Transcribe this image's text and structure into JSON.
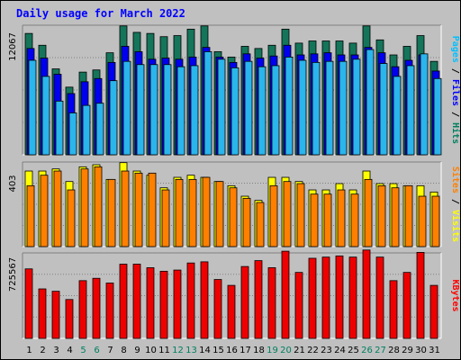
{
  "chart_data": {
    "type": "bar",
    "title": "Daily usage for March 2022",
    "x": [
      "1",
      "2",
      "3",
      "4",
      "5",
      "6",
      "7",
      "8",
      "9",
      "10",
      "11",
      "12",
      "13",
      "14",
      "15",
      "16",
      "17",
      "18",
      "19",
      "20",
      "21",
      "22",
      "23",
      "24",
      "25",
      "26",
      "27",
      "28",
      "29",
      "30",
      "31"
    ],
    "weekend_days": [
      "5",
      "6",
      "12",
      "13",
      "19",
      "20",
      "26",
      "27"
    ],
    "panels": [
      {
        "name": "requests",
        "ymax": 12067,
        "ymax_label": "12067",
        "legend": [
          {
            "text": "Pages",
            "color": "#00c0ff"
          },
          {
            "text": " / ",
            "color": "#000000"
          },
          {
            "text": "Files",
            "color": "#0000ff"
          },
          {
            "text": " / ",
            "color": "#000000"
          },
          {
            "text": "Hits",
            "color": "#008060"
          }
        ],
        "series": [
          {
            "name": "Hits",
            "color": "#14755a",
            "values": [
              11300,
              10200,
              8000,
              6300,
              7700,
              7900,
              9500,
              12000,
              11400,
              11300,
              11000,
              11100,
              11700,
              12000,
              9600,
              9100,
              10100,
              9900,
              10200,
              11700,
              10400,
              10600,
              10600,
              10600,
              10400,
              12000,
              10700,
              9300,
              10100,
              11100,
              8700
            ]
          },
          {
            "name": "Files",
            "color": "#0000ee",
            "values": [
              9900,
              9000,
              7500,
              5700,
              6800,
              7100,
              8600,
              10100,
              9600,
              8900,
              9000,
              8900,
              9100,
              10000,
              9100,
              8600,
              9400,
              9000,
              9200,
              10200,
              9300,
              9400,
              9500,
              9300,
              9300,
              10000,
              9500,
              8200,
              8800,
              9300,
              7800
            ]
          },
          {
            "name": "Pages",
            "color": "#2ab5ec",
            "values": [
              8800,
              7300,
              5000,
              3900,
              4600,
              4800,
              6900,
              8700,
              8400,
              8400,
              8400,
              8200,
              8300,
              9600,
              8900,
              8100,
              8700,
              8200,
              8300,
              9100,
              8800,
              8600,
              8700,
              8700,
              8900,
              9800,
              8500,
              7300,
              8300,
              9400,
              7100
            ]
          }
        ]
      },
      {
        "name": "visits",
        "ymax": 403,
        "ymax_label": "403",
        "legend": [
          {
            "text": "Sites",
            "color": "#ff8000"
          },
          {
            "text": " / ",
            "color": "#000000"
          },
          {
            "text": "Visits",
            "color": "#ffff00"
          }
        ],
        "series": [
          {
            "name": "Visits",
            "color": "#ffff00",
            "values": [
              360,
              360,
              370,
              310,
              380,
              390,
              320,
              400,
              360,
              340,
              280,
              330,
              340,
              330,
              310,
              290,
              240,
              220,
              330,
              330,
              310,
              270,
              270,
              300,
              270,
              360,
              300,
              300,
              290,
              290,
              260
            ]
          },
          {
            "name": "Sites",
            "color": "#ff8000",
            "values": [
              290,
              340,
              360,
              270,
              370,
              380,
              320,
              360,
              350,
              350,
              270,
              320,
              320,
              330,
              310,
              280,
              230,
              210,
              290,
              310,
              300,
              250,
              250,
              270,
              250,
              320,
              290,
              280,
              290,
              240,
              240
            ]
          }
        ]
      },
      {
        "name": "kbytes",
        "ymax": 725567,
        "ymax_label": "725567",
        "legend": [
          {
            "text": "KBytes",
            "color": "#ff0000"
          }
        ],
        "series": [
          {
            "name": "KBytes",
            "color": "#ee0000",
            "values": [
              590000,
              420000,
              400000,
              330000,
              490000,
              510000,
              470000,
              630000,
              630000,
              600000,
              570000,
              580000,
              640000,
              650000,
              500000,
              450000,
              610000,
              660000,
              600000,
              740000,
              560000,
              680000,
              690000,
              700000,
              690000,
              750000,
              690000,
              490000,
              560000,
              730000,
              450000
            ]
          }
        ]
      }
    ]
  }
}
